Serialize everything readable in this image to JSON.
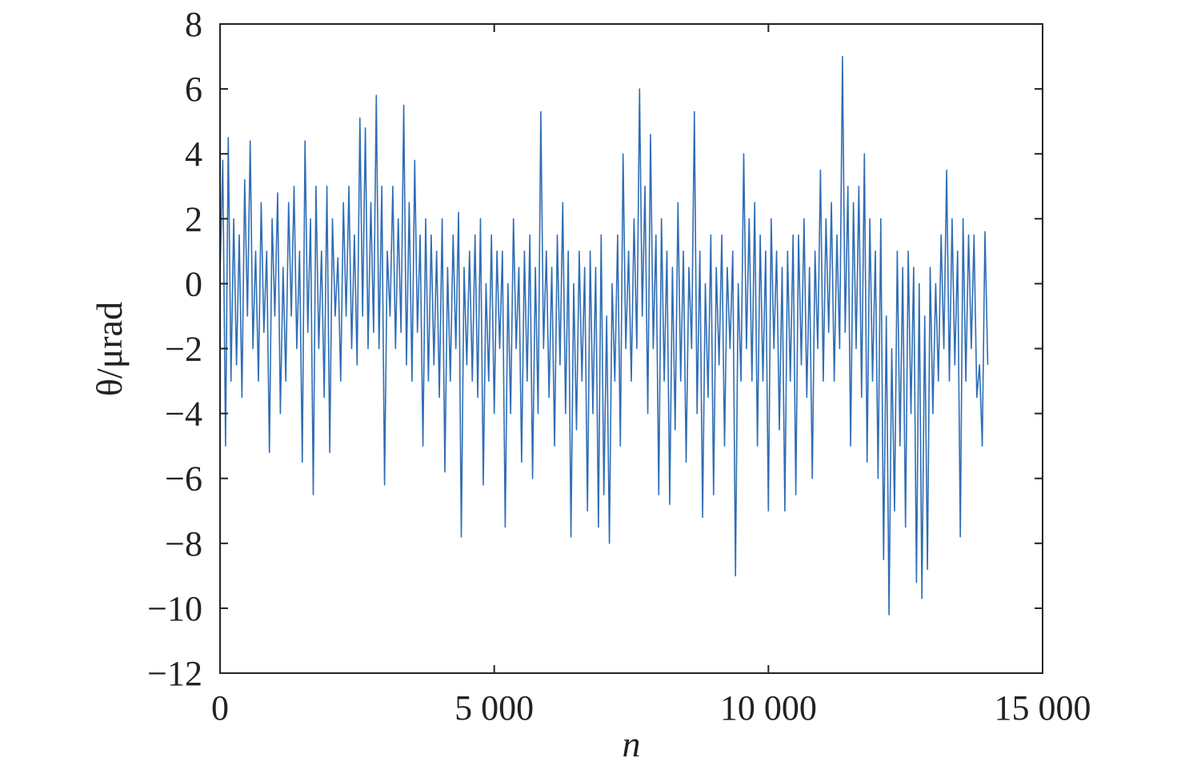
{
  "chart_data": {
    "type": "line",
    "title": "",
    "xlabel": "n",
    "ylabel": "θ/μrad",
    "xlim": [
      0,
      15000
    ],
    "ylim": [
      -12,
      8
    ],
    "x_ticks": [
      0,
      5000,
      10000,
      15000
    ],
    "x_tick_labels": [
      "0",
      "5 000",
      "10 000",
      "15 000"
    ],
    "y_ticks": [
      -12,
      -10,
      -8,
      -6,
      -4,
      -2,
      0,
      2,
      4,
      6,
      8
    ],
    "y_tick_labels": [
      "−12",
      "−10",
      "−8",
      "−6",
      "−4",
      "−2",
      "0",
      "2",
      "4",
      "6",
      "8"
    ],
    "grid": false,
    "legend": "none",
    "series": [
      {
        "color": "#2f6db5",
        "x_start": 0,
        "x_step": 50,
        "values": [
          0.2,
          3.8,
          -5.0,
          4.5,
          -3.0,
          2.0,
          -2.5,
          1.5,
          -3.5,
          3.2,
          -1.0,
          4.4,
          -2.0,
          1.0,
          -3.0,
          2.5,
          -1.5,
          1.0,
          -5.2,
          2.0,
          -1.0,
          2.8,
          -4.0,
          0.5,
          -3.0,
          2.5,
          -1.0,
          3.0,
          -2.0,
          1.0,
          -5.5,
          4.4,
          -1.5,
          2.0,
          -6.5,
          3.0,
          -2.0,
          1.0,
          -3.5,
          3.0,
          -5.2,
          2.0,
          -1.0,
          0.8,
          -3.0,
          2.5,
          -1.0,
          3.0,
          -2.0,
          1.5,
          -2.5,
          5.1,
          -1.0,
          4.8,
          -2.0,
          2.5,
          -1.5,
          5.8,
          -2.0,
          3.0,
          -6.2,
          1.0,
          -1.0,
          3.0,
          -2.0,
          2.0,
          -1.5,
          5.5,
          -2.5,
          2.5,
          -3.0,
          3.8,
          -1.5,
          1.5,
          -5.0,
          2.0,
          -3.0,
          1.5,
          -2.5,
          1.0,
          -3.5,
          2.0,
          -5.8,
          0.5,
          -3.0,
          1.5,
          -2.0,
          2.2,
          -7.8,
          0.5,
          -2.5,
          1.0,
          -3.0,
          1.5,
          -3.5,
          2.0,
          -6.2,
          0.0,
          -3.0,
          1.5,
          -4.0,
          1.0,
          -2.0,
          1.0,
          -7.5,
          0.0,
          -4.0,
          2.0,
          -2.0,
          0.5,
          -5.5,
          1.0,
          -3.0,
          1.5,
          -6.0,
          0.5,
          -4.0,
          5.3,
          -2.0,
          1.0,
          -3.5,
          0.5,
          -5.0,
          1.5,
          -2.5,
          2.5,
          -4.0,
          1.0,
          -7.8,
          0.0,
          -4.5,
          1.0,
          -3.0,
          0.5,
          -7.0,
          1.0,
          -4.0,
          0.5,
          -7.5,
          1.5,
          -6.5,
          -1.0,
          -8.0,
          0.0,
          -3.0,
          1.5,
          -5.0,
          4.0,
          -2.0,
          1.0,
          -3.0,
          2.0,
          -2.0,
          6.0,
          -1.0,
          3.0,
          -4.0,
          4.6,
          -2.0,
          1.5,
          -6.5,
          2.0,
          -3.0,
          1.0,
          -6.8,
          0.5,
          -4.5,
          2.5,
          -3.0,
          1.0,
          -5.5,
          0.5,
          -2.0,
          5.3,
          -4.0,
          1.0,
          -7.2,
          0.0,
          -3.5,
          1.5,
          -6.5,
          0.5,
          -2.5,
          1.5,
          -5.0,
          0.5,
          -2.0,
          1.0,
          -9.0,
          0.0,
          -3.0,
          4.0,
          -2.0,
          2.0,
          -3.0,
          2.5,
          -5.0,
          1.5,
          -3.0,
          1.0,
          -7.0,
          2.0,
          -2.0,
          1.0,
          -4.5,
          0.5,
          -7.0,
          1.0,
          -3.0,
          1.5,
          -6.5,
          1.5,
          -2.5,
          2.0,
          -3.5,
          0.5,
          -6.0,
          1.0,
          -2.0,
          3.5,
          -3.0,
          2.0,
          -1.5,
          2.5,
          -3.0,
          1.5,
          -2.0,
          7.0,
          -1.5,
          3.0,
          -5.0,
          2.5,
          -2.0,
          3.0,
          -3.5,
          4.0,
          -5.5,
          2.0,
          -3.0,
          1.0,
          -6.0,
          2.0,
          -8.5,
          -1.0,
          -10.2,
          -2.0,
          -7.0,
          1.0,
          -5.0,
          0.5,
          -7.5,
          1.0,
          -4.0,
          0.5,
          -9.2,
          0.0,
          -9.7,
          -1.0,
          -8.8,
          0.5,
          -4.0,
          0.0,
          -3.0,
          1.5,
          -2.0,
          3.5,
          -3.0,
          2.0,
          -2.5,
          1.0,
          -7.8,
          2.0,
          -3.0,
          1.5,
          -2.0,
          1.5,
          -3.5,
          -2.5,
          -5.0,
          1.6,
          -2.5
        ]
      }
    ]
  }
}
